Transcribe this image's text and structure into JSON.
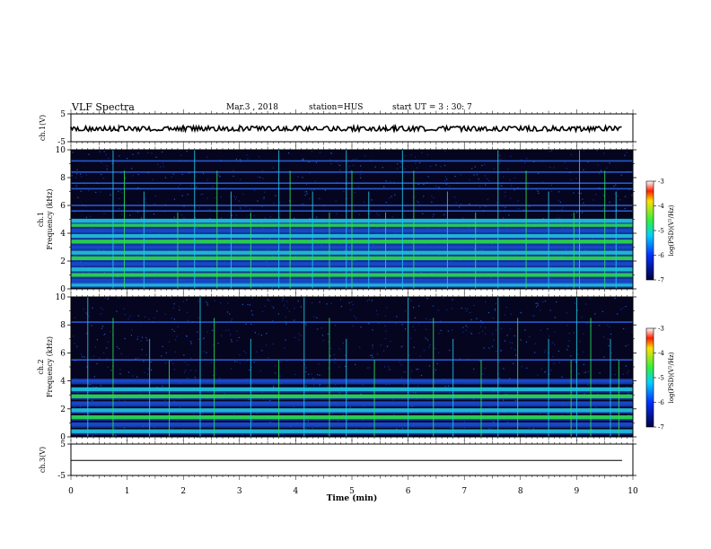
{
  "header": {
    "title": "VLF Spectra",
    "date": "Mar.3 , 2018",
    "station": "station=HUS",
    "start": "start UT = 3 : 30: 7"
  },
  "colors": {
    "background_dark": "#050520",
    "band_blue": "#1a4fd8",
    "band_cyan": "#22c8e8",
    "band_green": "#2ee05a",
    "waveform": "#000000"
  },
  "chart_data": [
    {
      "type": "line",
      "name": "ch1-waveform",
      "ylabel": "ch.1(V)",
      "ylim": [
        -5,
        5
      ],
      "yticks": [
        "5",
        "-5"
      ],
      "xlim": [
        0,
        10
      ],
      "baseline": -0.3,
      "amplitude": 0.6
    },
    {
      "type": "heatmap",
      "name": "ch1-spectrogram",
      "ylabel": "ch.1\nFrequency (kHz)",
      "ylim": [
        0,
        10
      ],
      "yticks": [
        "0",
        "2",
        "4",
        "6",
        "8",
        "10"
      ],
      "xlim": [
        0,
        10
      ],
      "colorbar": {
        "label": "log(PSD)(V²/Hz)",
        "ticks": [
          "-3",
          "-4",
          "-5",
          "-6",
          "-7"
        ],
        "range": [
          -7,
          -3
        ]
      },
      "bands_khz": [
        0.3,
        0.6,
        1.0,
        1.4,
        1.8,
        2.2,
        2.6,
        3.0,
        3.4,
        3.8,
        4.2,
        4.6,
        4.9
      ],
      "upper_lines_khz": [
        5.6,
        6.0,
        7.2,
        7.6,
        8.4,
        9.2
      ],
      "bursts_min": [
        0.75,
        0.95,
        1.3,
        1.9,
        2.2,
        2.6,
        2.85,
        3.2,
        3.7,
        3.9,
        4.3,
        4.6,
        4.9,
        5.0,
        5.3,
        5.6,
        5.9,
        6.1,
        6.7,
        7.2,
        7.6,
        8.1,
        8.5,
        8.95,
        9.05,
        9.5,
        9.7
      ]
    },
    {
      "type": "heatmap",
      "name": "ch2-spectrogram",
      "ylabel": "ch.2\nFrequency (kHz)",
      "ylim": [
        0,
        10
      ],
      "yticks": [
        "0",
        "2",
        "4",
        "6",
        "8",
        "10"
      ],
      "xlim": [
        0,
        10
      ],
      "colorbar": {
        "label": "log(PSD)(V²/Hz)",
        "ticks": [
          "-3",
          "-4",
          "-5",
          "-6",
          "-7"
        ],
        "range": [
          -7,
          -3
        ]
      },
      "bands_khz": [
        0.4,
        0.9,
        1.4,
        1.9,
        2.4,
        2.9,
        3.4,
        4.0
      ],
      "upper_lines_khz": [
        5.5,
        8.2
      ],
      "bursts_min": [
        0.3,
        0.75,
        1.4,
        1.75,
        2.3,
        2.55,
        3.2,
        3.7,
        4.15,
        4.6,
        4.9,
        5.4,
        6.0,
        6.45,
        6.8,
        7.3,
        7.6,
        7.95,
        8.5,
        8.9,
        9.0,
        9.25,
        9.6,
        9.75
      ]
    },
    {
      "type": "line",
      "name": "ch3-waveform",
      "ylabel": "ch.3(V)",
      "ylim": [
        -5,
        5
      ],
      "yticks": [
        "5",
        "-5"
      ],
      "xlim": [
        0,
        10
      ],
      "baseline": -0.2,
      "amplitude": 0.0
    }
  ],
  "xaxis": {
    "label": "Time (min)",
    "ticks": [
      "0",
      "1",
      "2",
      "3",
      "4",
      "5",
      "6",
      "7",
      "8",
      "9",
      "10"
    ]
  }
}
